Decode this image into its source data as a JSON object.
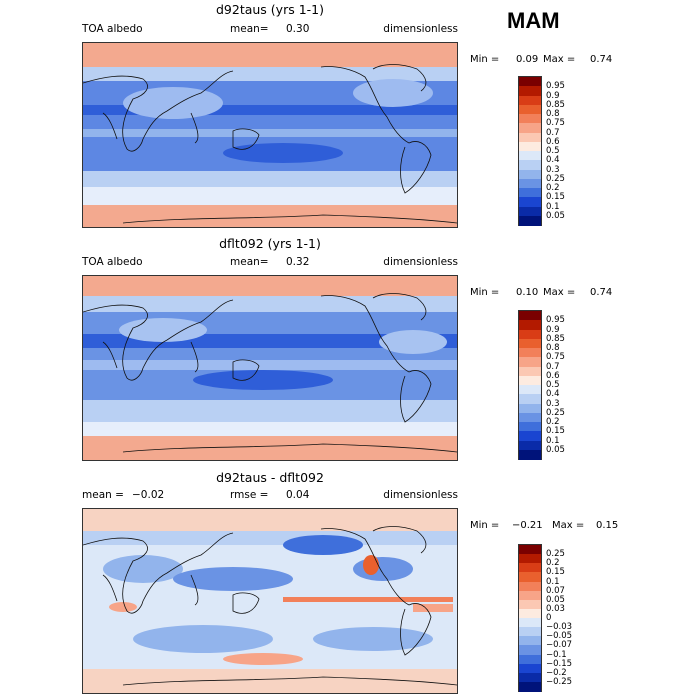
{
  "season": "MAM",
  "panels": [
    {
      "title": "d92taus (yrs 1-1)",
      "left_label": "TOA albedo",
      "mean_label": "mean=",
      "mean_value": "0.30",
      "units": "dimensionless",
      "min_label": "Min =",
      "min_value": "0.09",
      "max_label": "Max =",
      "max_value": "0.74",
      "colorbar_labels": [
        "0.95",
        "0.9",
        "0.85",
        "0.8",
        "0.75",
        "0.7",
        "0.6",
        "0.5",
        "0.4",
        "0.3",
        "0.25",
        "0.2",
        "0.15",
        "0.1",
        "0.05"
      ],
      "colorbar_colors": [
        "#7a0000",
        "#b31a00",
        "#d93d16",
        "#e9602e",
        "#f2805a",
        "#f7a488",
        "#fbc8b3",
        "#fdebe0",
        "#dce8f8",
        "#b9d0f3",
        "#92b4ec",
        "#6a93e4",
        "#3f6fdb",
        "#1a45d1",
        "#0a2ba8",
        "#00137a"
      ]
    },
    {
      "title": "dflt092 (yrs 1-1)",
      "left_label": "TOA albedo",
      "mean_label": "mean=",
      "mean_value": "0.32",
      "units": "dimensionless",
      "min_label": "Min =",
      "min_value": "0.10",
      "max_label": "Max =",
      "max_value": "0.74",
      "colorbar_labels": [
        "0.95",
        "0.9",
        "0.85",
        "0.8",
        "0.75",
        "0.7",
        "0.6",
        "0.5",
        "0.4",
        "0.3",
        "0.25",
        "0.2",
        "0.15",
        "0.1",
        "0.05"
      ],
      "colorbar_colors": [
        "#7a0000",
        "#b31a00",
        "#d93d16",
        "#e9602e",
        "#f2805a",
        "#f7a488",
        "#fbc8b3",
        "#fdebe0",
        "#dce8f8",
        "#b9d0f3",
        "#92b4ec",
        "#6a93e4",
        "#3f6fdb",
        "#1a45d1",
        "#0a2ba8",
        "#00137a"
      ]
    },
    {
      "title": "d92taus - dflt092",
      "left_label": "mean =",
      "left_value": "−0.02",
      "rmse_label": "rmse =",
      "rmse_value": "0.04",
      "units": "dimensionless",
      "min_label": "Min =",
      "min_value": "−0.21",
      "max_label": "Max =",
      "max_value": "0.15",
      "colorbar_labels": [
        "0.25",
        "0.2",
        "0.15",
        "0.1",
        "0.07",
        "0.05",
        "0.03",
        "0",
        "−0.03",
        "−0.05",
        "−0.07",
        "−0.1",
        "−0.15",
        "−0.2",
        "−0.25"
      ],
      "colorbar_colors": [
        "#7a0000",
        "#b31a00",
        "#d93d16",
        "#e9602e",
        "#f2805a",
        "#f7a488",
        "#fbc8b3",
        "#fdebe0",
        "#dce8f8",
        "#b9d0f3",
        "#92b4ec",
        "#6a93e4",
        "#3f6fdb",
        "#1a45d1",
        "#0a2ba8",
        "#00137a"
      ]
    }
  ]
}
